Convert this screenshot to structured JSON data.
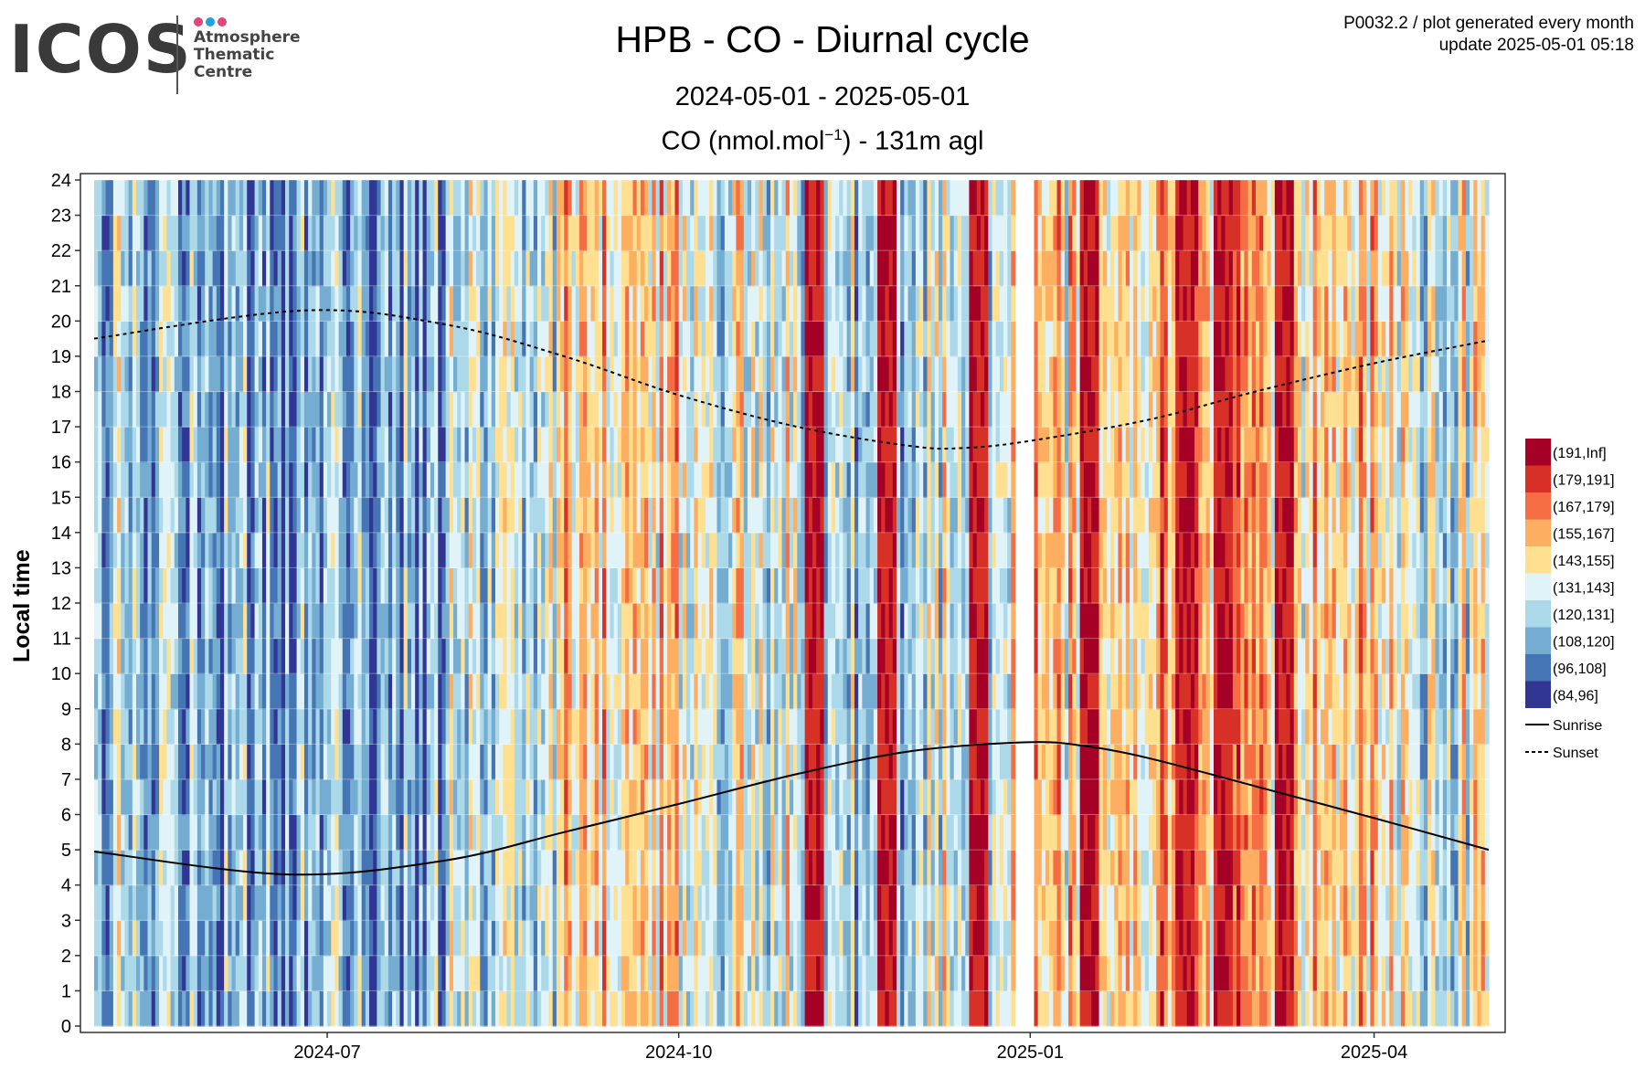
{
  "header": {
    "logo_text": "ICOS",
    "logo_sub": [
      "Atmosphere",
      "Thematic",
      "Centre"
    ],
    "title": "HPB - CO - Diurnal cycle",
    "subtitle": "2024-05-01 - 2025-05-01",
    "meta_line1": "P0032.2 / plot generated every month",
    "meta_line2": "update  2025-05-01 05:18"
  },
  "colors": {
    "logo_dots": [
      "#e0457b",
      "#1fa3e0",
      "#e0457b"
    ],
    "bins": [
      "#313695",
      "#4575b4",
      "#74add1",
      "#abd9e9",
      "#e0f3f8",
      "#fee090",
      "#fdae61",
      "#f46d43",
      "#d73027",
      "#a50026"
    ]
  },
  "chart_data": {
    "type": "heatmap",
    "title": "CO (nmol.mol",
    "title_sup": "−1",
    "title_suffix": ") - 131m agl",
    "ylabel": "Local time",
    "x_range": [
      "2024-05-01",
      "2025-05-01"
    ],
    "y_range": [
      0,
      24
    ],
    "y_ticks": [
      "0",
      "1",
      "2",
      "3",
      "4",
      "5",
      "6",
      "7",
      "8",
      "9",
      "10",
      "11",
      "12",
      "13",
      "14",
      "15",
      "16",
      "17",
      "18",
      "19",
      "20",
      "21",
      "22",
      "23",
      "24"
    ],
    "x_ticks": [
      {
        "date": "2024-07-01",
        "label": "2024-07"
      },
      {
        "date": "2024-10-01",
        "label": "2024-10"
      },
      {
        "date": "2025-01-01",
        "label": "2025-01"
      },
      {
        "date": "2025-04-01",
        "label": "2025-04"
      }
    ],
    "grid": true,
    "legend": {
      "position": "right",
      "bins": [
        "(191,Inf]",
        "(179,191]",
        "(167,179]",
        "(155,167]",
        "(143,155]",
        "(131,143]",
        "(120,131]",
        "(108,120]",
        "(96,108]",
        "(84,96]"
      ],
      "lines": [
        {
          "name": "Sunrise",
          "style": "solid"
        },
        {
          "name": "Sunset",
          "style": "dashed"
        }
      ]
    },
    "monthly_dominant_bin": [
      {
        "month": "2024-05",
        "bin": "(120,131]"
      },
      {
        "month": "2024-06",
        "bin": "(108,120]"
      },
      {
        "month": "2024-07",
        "bin": "(108,120]"
      },
      {
        "month": "2024-08",
        "bin": "(131,143]"
      },
      {
        "month": "2024-09",
        "bin": "(143,155]"
      },
      {
        "month": "2024-10",
        "bin": "(131,143]"
      },
      {
        "month": "2024-11",
        "bin": "(120,131]"
      },
      {
        "month": "2024-12",
        "bin": "(131,143]"
      },
      {
        "month": "2025-01",
        "bin": "(143,155]"
      },
      {
        "month": "2025-02",
        "bin": "(155,167]"
      },
      {
        "month": "2025-03",
        "bin": "(143,155]"
      },
      {
        "month": "2025-04",
        "bin": "(131,143]"
      }
    ],
    "high_events": [
      "2024-11-05",
      "2024-11-24",
      "2024-12-18",
      "2025-01-16",
      "2025-02-10",
      "2025-02-20",
      "2025-03-08"
    ],
    "data_gaps": [
      [
        "2024-12-28",
        "2025-01-02"
      ]
    ],
    "sunrise": [
      {
        "date": "2024-05-01",
        "hour": 4.95
      },
      {
        "date": "2024-06-21",
        "hour": 4.3
      },
      {
        "date": "2024-08-01",
        "hour": 4.7
      },
      {
        "date": "2024-09-01",
        "hour": 5.5
      },
      {
        "date": "2024-10-01",
        "hour": 6.3
      },
      {
        "date": "2024-11-01",
        "hour": 7.15
      },
      {
        "date": "2024-12-01",
        "hour": 7.8
      },
      {
        "date": "2024-12-31",
        "hour": 8.05
      },
      {
        "date": "2025-01-15",
        "hour": 7.95
      },
      {
        "date": "2025-02-01",
        "hour": 7.6
      },
      {
        "date": "2025-03-01",
        "hour": 6.8
      },
      {
        "date": "2025-04-01",
        "hour": 5.9
      },
      {
        "date": "2025-05-01",
        "hour": 5.0
      }
    ],
    "sunset": [
      {
        "date": "2024-05-01",
        "hour": 19.5
      },
      {
        "date": "2024-06-25",
        "hour": 20.3
      },
      {
        "date": "2024-08-01",
        "hour": 19.9
      },
      {
        "date": "2024-09-01",
        "hour": 19.0
      },
      {
        "date": "2024-10-01",
        "hour": 17.9
      },
      {
        "date": "2024-11-01",
        "hour": 17.0
      },
      {
        "date": "2024-12-01",
        "hour": 16.45
      },
      {
        "date": "2024-12-15",
        "hour": 16.4
      },
      {
        "date": "2025-01-01",
        "hour": 16.6
      },
      {
        "date": "2025-02-01",
        "hour": 17.2
      },
      {
        "date": "2025-03-01",
        "hour": 18.0
      },
      {
        "date": "2025-04-01",
        "hour": 18.8
      },
      {
        "date": "2025-05-01",
        "hour": 19.45
      }
    ]
  }
}
